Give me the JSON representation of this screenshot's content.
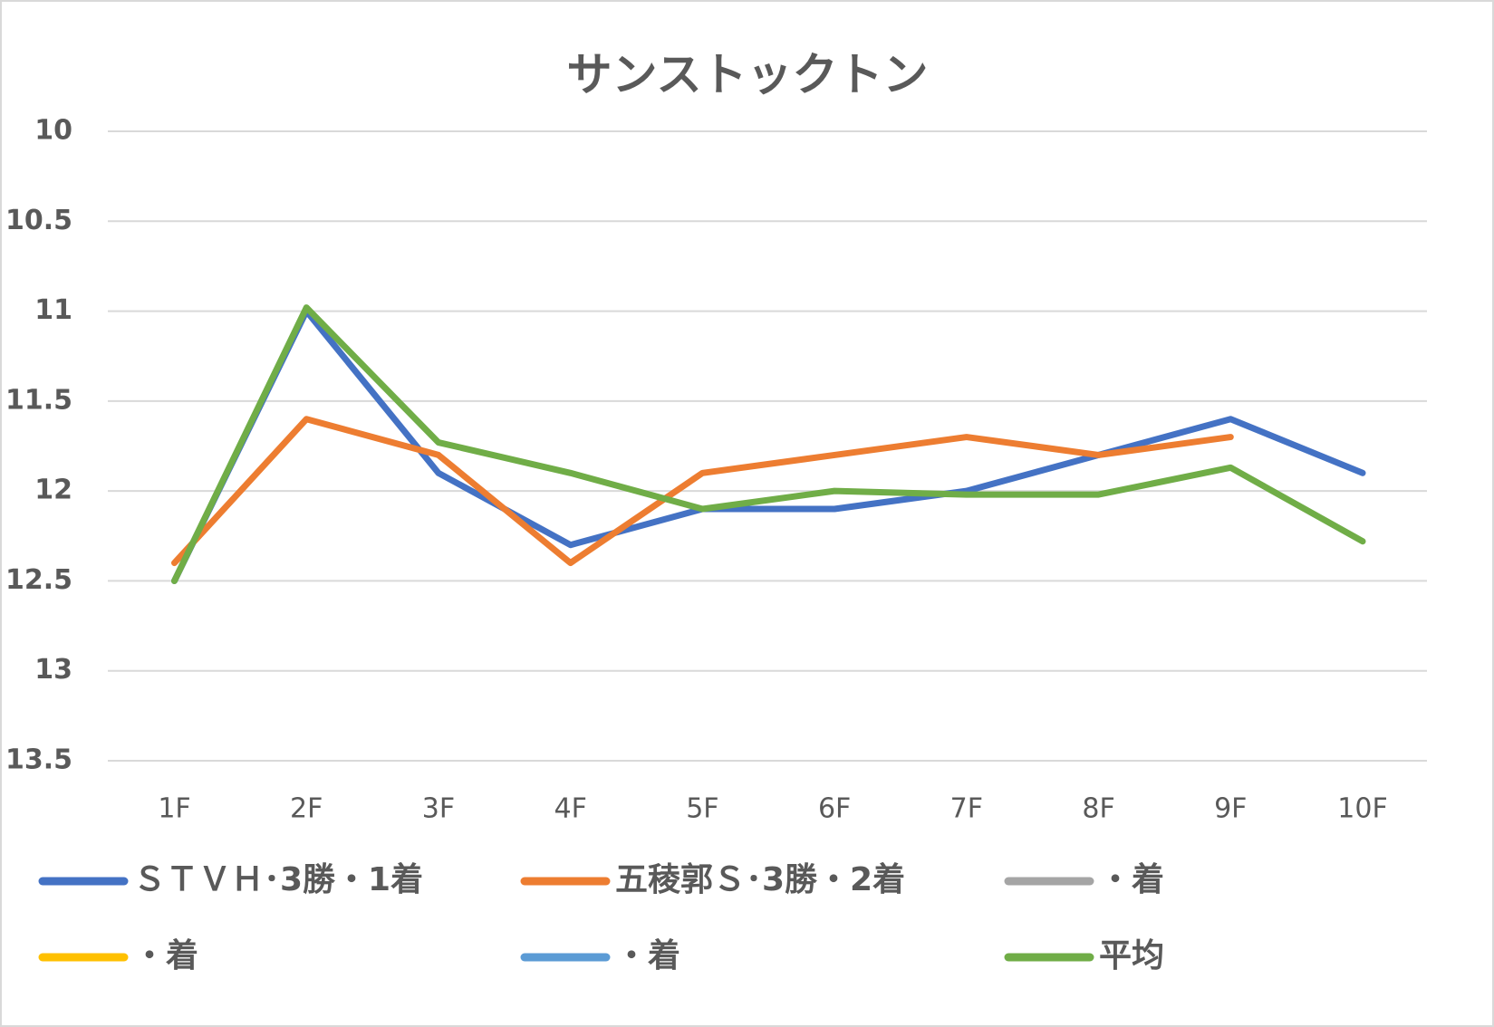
{
  "chart_data": {
    "type": "line",
    "title": "サンストックトン",
    "categories": [
      "1F",
      "2F",
      "3F",
      "4F",
      "5F",
      "6F",
      "7F",
      "8F",
      "9F",
      "10F"
    ],
    "series": [
      {
        "name": "ＳＴＶＨ･3勝・1着",
        "color": "#4472c4",
        "values": [
          12.5,
          11.0,
          11.9,
          12.3,
          12.1,
          12.1,
          12.0,
          11.8,
          11.6,
          11.9
        ]
      },
      {
        "name": "五稜郭Ｓ･3勝・2着",
        "color": "#ed7d31",
        "values": [
          12.4,
          11.6,
          11.8,
          12.4,
          11.9,
          11.8,
          11.7,
          11.8,
          11.7,
          null
        ]
      },
      {
        "name": "・着",
        "color": "#a5a5a5",
        "values": [
          null,
          null,
          null,
          null,
          null,
          null,
          null,
          null,
          null,
          null
        ]
      },
      {
        "name": "・着",
        "color": "#ffc000",
        "values": [
          null,
          null,
          null,
          null,
          null,
          null,
          null,
          null,
          null,
          null
        ]
      },
      {
        "name": "・着",
        "color": "#5b9bd5",
        "values": [
          null,
          null,
          null,
          null,
          null,
          null,
          null,
          null,
          null,
          null
        ]
      },
      {
        "name": "平均",
        "color": "#70ad47",
        "values": [
          12.5,
          10.98,
          11.73,
          11.9,
          12.1,
          12.0,
          12.02,
          12.02,
          11.87,
          12.28
        ]
      }
    ],
    "ylim": [
      10,
      13.5
    ],
    "yticks": [
      10,
      10.5,
      11,
      11.5,
      12,
      12.5,
      13,
      13.5
    ],
    "y_inverted": true,
    "grid": true,
    "legend": "bottom"
  }
}
